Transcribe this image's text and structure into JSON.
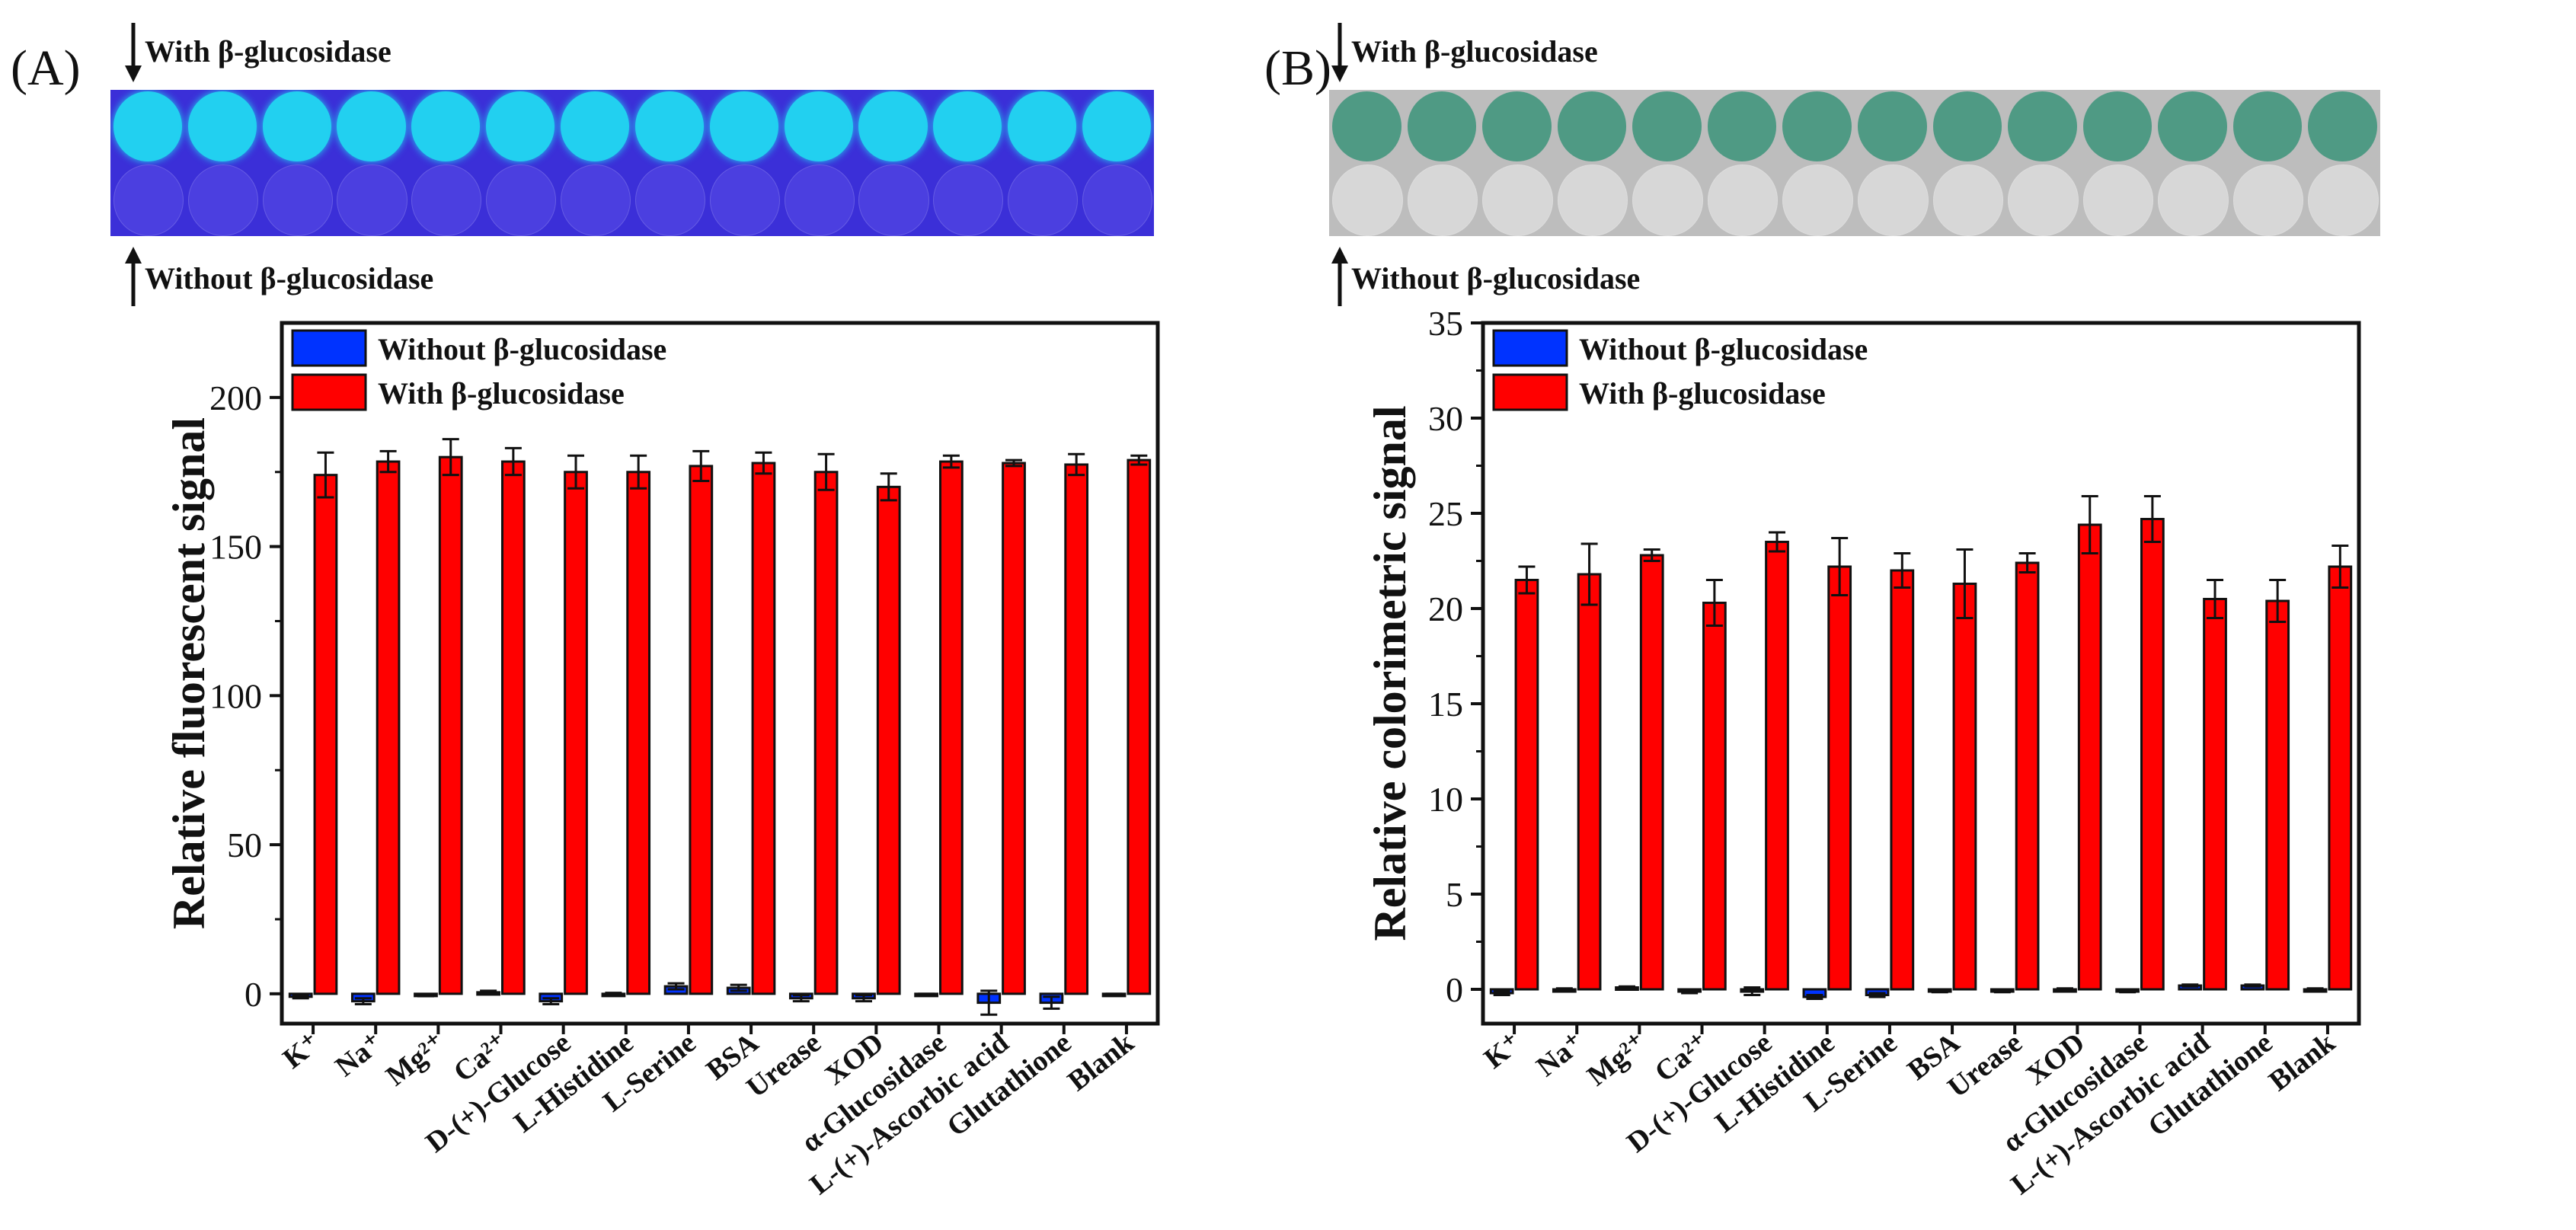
{
  "figure": {
    "panel_a_label": "(A)",
    "panel_b_label": "(B)",
    "photo_with_label": "With β-glucosidase",
    "photo_without_label": "Without β-glucosidase"
  },
  "colors": {
    "without_series": "#0033ff",
    "with_series": "#ff0000",
    "fluor_with_well": "#22d0f0",
    "fluor_without_well": "#4b3fe0",
    "fluor_strip_bg": "#3b2fd8",
    "color_with_well": "#4f9a84",
    "color_without_well": "#d7d7d7",
    "color_strip_bg": "#bdbdbd"
  },
  "chart_data": [
    {
      "type": "bar",
      "panel": "A",
      "title": "",
      "xlabel": "",
      "ylabel": "Relative fluorescent signal",
      "ylim": [
        -10,
        225
      ],
      "yticks": [
        "0",
        "50",
        "100",
        "150",
        "200"
      ],
      "categories": [
        "K⁺",
        "Na⁺",
        "Mg²⁺",
        "Ca²⁺",
        "D-(+)-Glucose",
        "L-Histidine",
        "L-Serine",
        "BSA",
        "Urease",
        "XOD",
        "α-Glucosidase",
        "L-(+)-Ascorbic acid",
        "Glutathione",
        "Blank"
      ],
      "legend_position": "top-left",
      "series": [
        {
          "name": "Without β-glucosidase",
          "values": [
            -1,
            -2.5,
            -0.5,
            0.5,
            -2.5,
            0,
            2.5,
            2,
            -1.5,
            -1.5,
            -0.3,
            -3,
            -3,
            -0.3
          ],
          "errors": [
            0.5,
            1,
            0.3,
            0.5,
            1,
            0.3,
            1,
            1,
            1,
            1,
            0.3,
            4,
            2,
            0.3
          ]
        },
        {
          "name": "With β-glucosidase",
          "values": [
            174,
            178.5,
            180,
            178.5,
            175,
            175,
            177,
            178,
            175,
            170,
            178.5,
            178,
            177.5,
            179
          ],
          "errors": [
            7.5,
            3.5,
            6,
            4.5,
            5.5,
            5.5,
            5,
            3.5,
            6,
            4.5,
            2,
            1,
            3.5,
            1.5
          ]
        }
      ]
    },
    {
      "type": "bar",
      "panel": "B",
      "title": "",
      "xlabel": "",
      "ylabel": "Relative colorimetric signal",
      "ylim": [
        -1.8,
        35
      ],
      "yticks": [
        "0",
        "5",
        "10",
        "15",
        "20",
        "25",
        "30",
        "35"
      ],
      "categories": [
        "K⁺",
        "Na⁺",
        "Mg²⁺",
        "Ca²⁺",
        "D-(+)-Glucose",
        "L-Histidine",
        "L-Serine",
        "BSA",
        "Urease",
        "XOD",
        "α-Glucosidase",
        "L-(+)-Ascorbic acid",
        "Glutathione",
        "Blank"
      ],
      "legend_position": "top-left",
      "series": [
        {
          "name": "Without β-glucosidase",
          "values": [
            -0.2,
            0,
            0.1,
            -0.1,
            -0.1,
            -0.4,
            -0.3,
            -0.1,
            -0.1,
            0,
            -0.1,
            0.2,
            0.2,
            0
          ],
          "errors": [
            0.1,
            0.05,
            0.05,
            0.1,
            0.2,
            0.1,
            0.1,
            0.05,
            0.05,
            0.05,
            0.05,
            0.05,
            0.05,
            0.05
          ]
        },
        {
          "name": "With β-glucosidase",
          "values": [
            21.5,
            21.8,
            22.8,
            20.3,
            23.5,
            22.2,
            22,
            21.3,
            22.4,
            24.4,
            24.7,
            20.5,
            20.4,
            22.2
          ],
          "errors": [
            0.7,
            1.6,
            0.3,
            1.2,
            0.5,
            1.5,
            0.9,
            1.8,
            0.5,
            1.5,
            1.2,
            1,
            1.1,
            1.1
          ]
        }
      ]
    }
  ]
}
